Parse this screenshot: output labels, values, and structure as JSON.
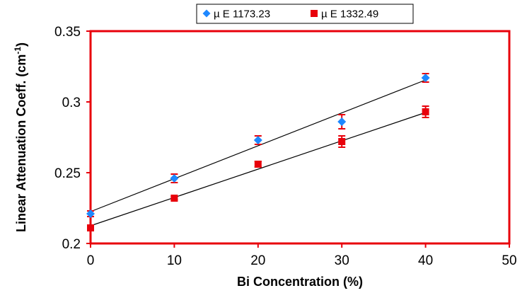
{
  "chart_data": {
    "type": "scatter",
    "title": "",
    "xlabel": "Bi Concentration (%)",
    "ylabel_main": "Linear Attenuation Coeff. (cm",
    "ylabel_sup": "-1",
    "ylabel_close": ")",
    "xlim": [
      0,
      50
    ],
    "ylim": [
      0.2,
      0.35
    ],
    "x_ticks": [
      "0",
      "10",
      "20",
      "30",
      "40",
      "50"
    ],
    "y_ticks": [
      "0.2",
      "0.25",
      "0.3",
      "0.35"
    ],
    "grid": false,
    "legend_position": "top-center",
    "plot_border_color": "#e8000b",
    "series": [
      {
        "name": "µ E 1173.23",
        "marker": "diamond",
        "color": "#1e88ff",
        "x": [
          0,
          10,
          20,
          30,
          40
        ],
        "y": [
          0.221,
          0.246,
          0.273,
          0.286,
          0.317
        ],
        "err": [
          0.002,
          0.003,
          0.003,
          0.005,
          0.003
        ],
        "fit": {
          "x": [
            0,
            40
          ],
          "y": [
            0.2225,
            0.3155
          ]
        }
      },
      {
        "name": "µ E 1332.49",
        "marker": "square",
        "color": "#e8000b",
        "x": [
          0,
          10,
          20,
          30,
          40
        ],
        "y": [
          0.211,
          0.232,
          0.256,
          0.272,
          0.293
        ],
        "err": [
          0.002,
          0.001,
          0.002,
          0.004,
          0.004
        ],
        "fit": {
          "x": [
            0,
            40
          ],
          "y": [
            0.2125,
            0.2925
          ]
        }
      }
    ]
  }
}
